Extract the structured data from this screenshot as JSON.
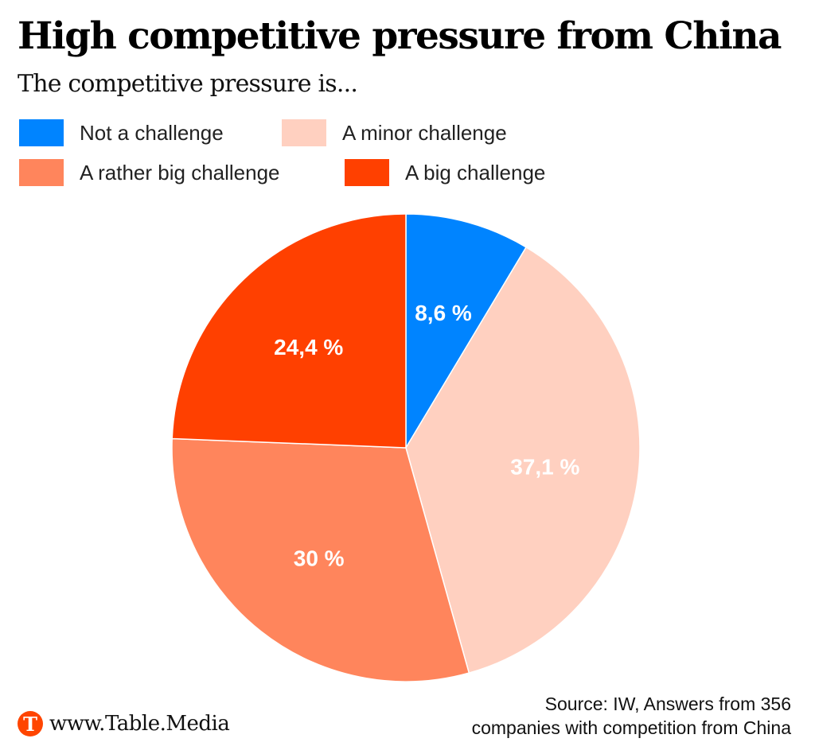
{
  "header": {
    "title": "High competitive pressure from China",
    "subtitle": "The competitive pressure is..."
  },
  "chart_data": {
    "type": "pie",
    "title": "High competitive pressure from China",
    "subtitle": "The competitive pressure is...",
    "start_angle_deg": 0,
    "direction": "clockwise",
    "legend_position": "top",
    "slices": [
      {
        "name": "Not a challenge",
        "value": 8.6,
        "label": "8,6 %",
        "color": "#0084ff"
      },
      {
        "name": "A minor challenge",
        "value": 37.1,
        "label": "37,1 %",
        "color": "#ffd0c0"
      },
      {
        "name": "A rather big challenge",
        "value": 30.0,
        "label": "30 %",
        "color": "#ff855c"
      },
      {
        "name": "A big challenge",
        "value": 24.4,
        "label": "24,4 %",
        "color": "#ff4000"
      }
    ]
  },
  "legend": [
    {
      "label": "Not a challenge",
      "color": "#0084ff"
    },
    {
      "label": "A minor challenge",
      "color": "#ffd0c0"
    },
    {
      "label": "A rather big challenge",
      "color": "#ff855c"
    },
    {
      "label": "A big challenge",
      "color": "#ff4000"
    }
  ],
  "footer": {
    "logo_letter": "T",
    "logo_text": "www.Table.Media",
    "source_line1": "Source: IW, Answers from 356",
    "source_line2": "companies with competition from China"
  }
}
